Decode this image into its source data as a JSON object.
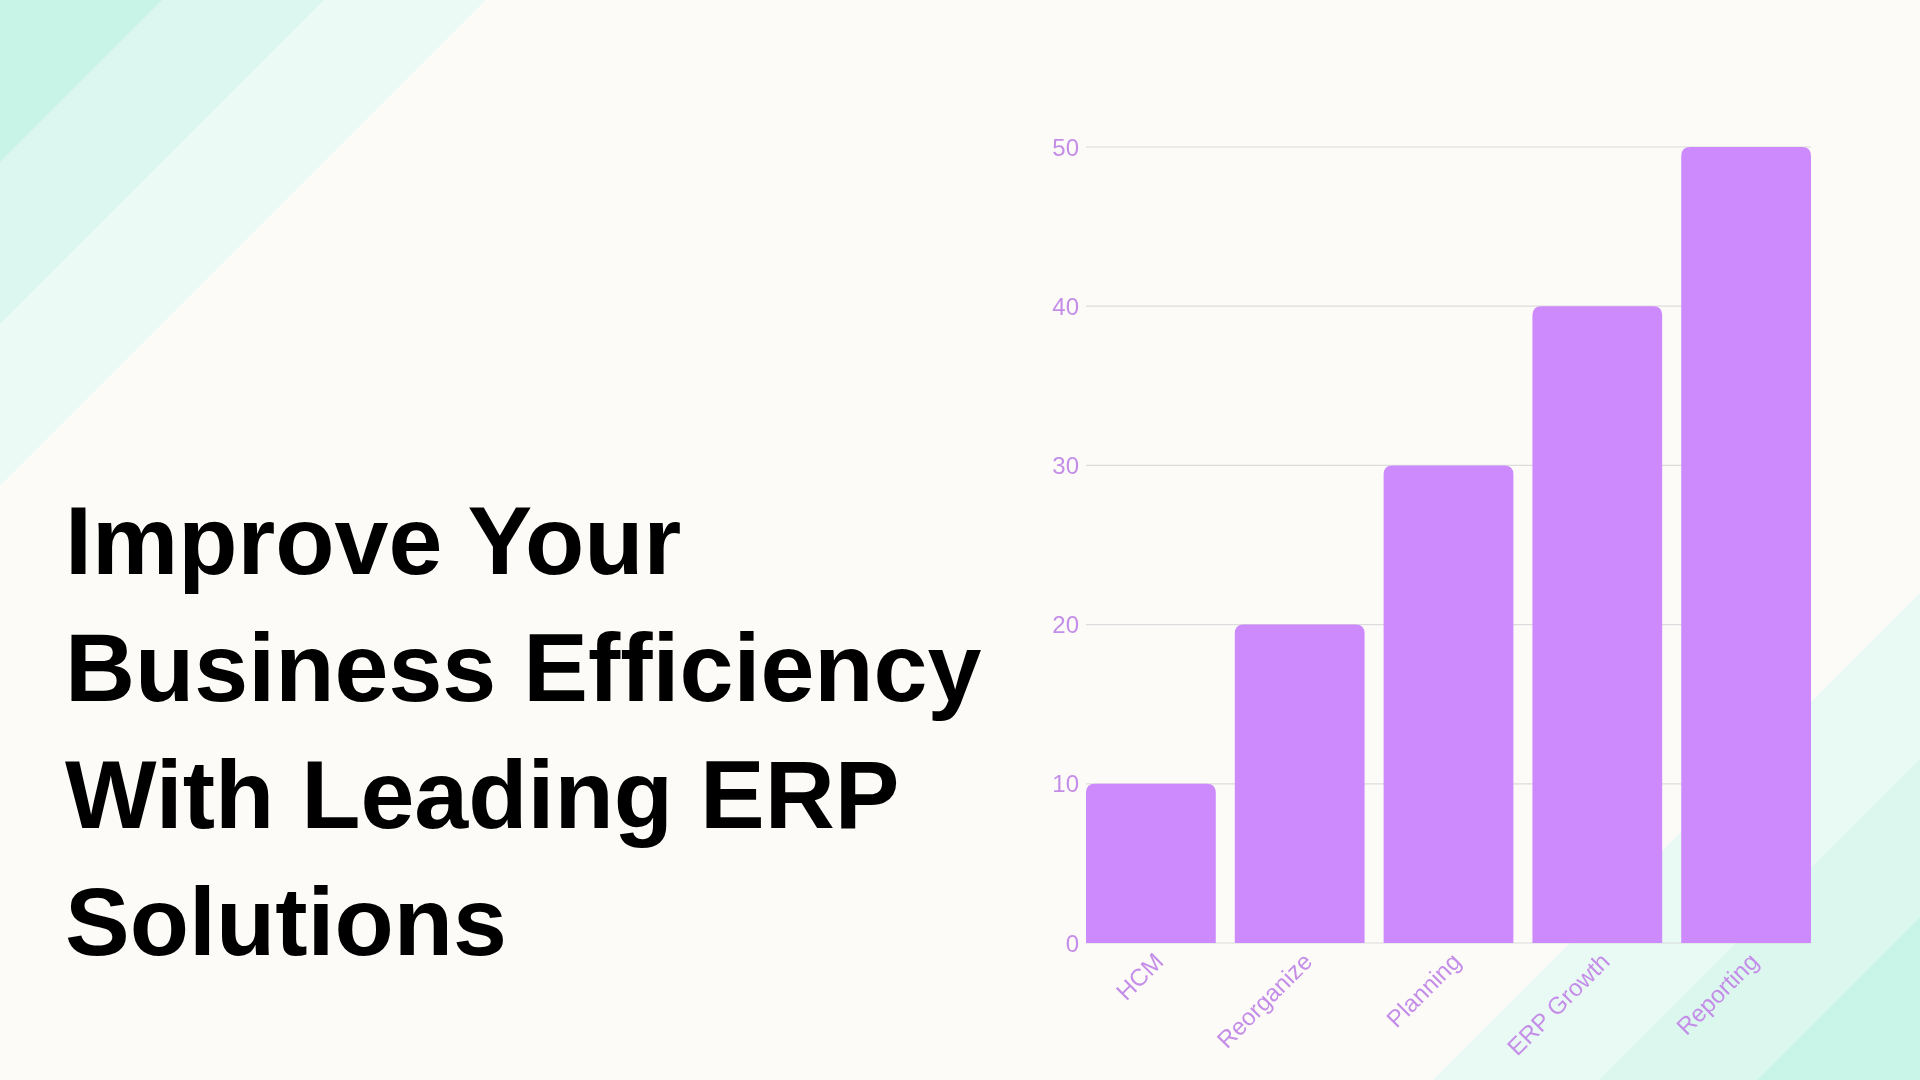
{
  "chart_data": {
    "type": "bar",
    "title": "Improve Your Business Efficiency With Leading ERP Solutions",
    "categories": [
      "HCM",
      "Reorganize",
      "Planning",
      "ERP Growth",
      "Reporting"
    ],
    "values": [
      10,
      20,
      30,
      40,
      50
    ],
    "color": "#cc8afd",
    "ylim": [
      0,
      50
    ],
    "yticks": [
      0,
      10,
      20,
      30,
      40,
      50
    ],
    "grid": "y"
  }
}
